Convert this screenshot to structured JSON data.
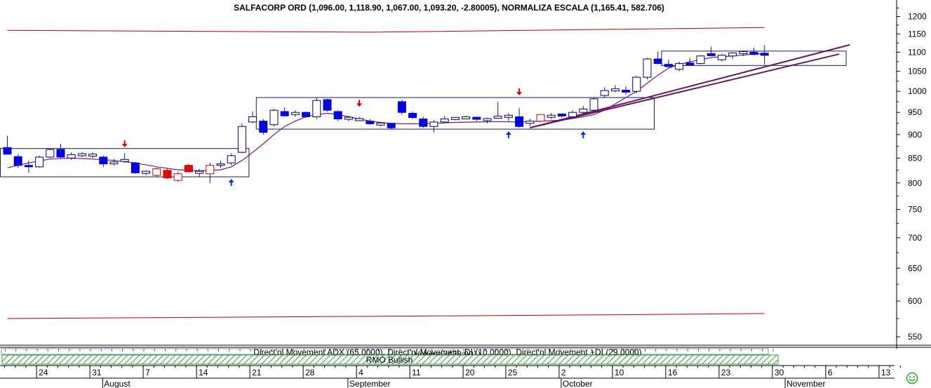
{
  "chart_data": {
    "type": "candlestick",
    "title": "SALFACORP ORD (1,096.00, 1,118.90, 1,067.00, 1,093.20, -2.80005), NORMALIZA ESCALA (1,165.41, 582.706)",
    "ylim": [
      530,
      1230
    ],
    "yscale": "log",
    "yticks": [
      550,
      600,
      650,
      700,
      750,
      800,
      850,
      900,
      950,
      1000,
      1050,
      1100,
      1150,
      1200
    ],
    "xlim": [
      0,
      92
    ],
    "x_day_ticks": [
      {
        "i": 3,
        "label": "24"
      },
      {
        "i": 8,
        "label": "31"
      },
      {
        "i": 13,
        "label": "7"
      },
      {
        "i": 18,
        "label": "14"
      },
      {
        "i": 23,
        "label": "21"
      },
      {
        "i": 28,
        "label": "28"
      },
      {
        "i": 33,
        "label": "4"
      },
      {
        "i": 38,
        "label": "11"
      },
      {
        "i": 43,
        "label": "20"
      },
      {
        "i": 47,
        "label": "25"
      },
      {
        "i": 52,
        "label": "2"
      },
      {
        "i": 57,
        "label": "10"
      },
      {
        "i": 62,
        "label": "16"
      },
      {
        "i": 67,
        "label": "23"
      },
      {
        "i": 72,
        "label": "30"
      },
      {
        "i": 77,
        "label": "6"
      },
      {
        "i": 82,
        "label": "13"
      }
    ],
    "x_month_ticks": [
      {
        "i": 9,
        "label": "August"
      },
      {
        "i": 32,
        "label": "September"
      },
      {
        "i": 52,
        "label": "October"
      },
      {
        "i": 73,
        "label": "November"
      }
    ],
    "candles": [
      {
        "i": 0,
        "o": 872,
        "h": 897,
        "l": 858,
        "c": 858,
        "color": "blue"
      },
      {
        "i": 1,
        "o": 853,
        "h": 858,
        "l": 830,
        "c": 835,
        "color": "blue"
      },
      {
        "i": 2,
        "o": 835,
        "h": 845,
        "l": 820,
        "c": 832,
        "color": "blue"
      },
      {
        "i": 3,
        "o": 832,
        "h": 855,
        "l": 830,
        "c": 852,
        "color": "white"
      },
      {
        "i": 4,
        "o": 852,
        "h": 870,
        "l": 850,
        "c": 868,
        "color": "white"
      },
      {
        "i": 5,
        "o": 868,
        "h": 880,
        "l": 850,
        "c": 852,
        "color": "blue"
      },
      {
        "i": 6,
        "o": 850,
        "h": 862,
        "l": 846,
        "c": 857,
        "color": "white"
      },
      {
        "i": 7,
        "o": 857,
        "h": 862,
        "l": 852,
        "c": 857,
        "color": "white"
      },
      {
        "i": 8,
        "o": 857,
        "h": 862,
        "l": 850,
        "c": 855,
        "color": "white"
      },
      {
        "i": 9,
        "o": 852,
        "h": 855,
        "l": 832,
        "c": 838,
        "color": "blue"
      },
      {
        "i": 10,
        "o": 838,
        "h": 848,
        "l": 835,
        "c": 842,
        "color": "white"
      },
      {
        "i": 11,
        "o": 845,
        "h": 860,
        "l": 840,
        "c": 845,
        "color": "white"
      },
      {
        "i": 12,
        "o": 840,
        "h": 842,
        "l": 818,
        "c": 820,
        "color": "blue"
      },
      {
        "i": 13,
        "o": 822,
        "h": 825,
        "l": 815,
        "c": 820,
        "color": "white"
      },
      {
        "i": 14,
        "o": 815,
        "h": 830,
        "l": 812,
        "c": 828,
        "color": "redhollow"
      },
      {
        "i": 15,
        "o": 825,
        "h": 828,
        "l": 808,
        "c": 810,
        "color": "red"
      },
      {
        "i": 16,
        "o": 805,
        "h": 822,
        "l": 802,
        "c": 818,
        "color": "redhollow"
      },
      {
        "i": 17,
        "o": 835,
        "h": 838,
        "l": 822,
        "c": 822,
        "color": "red"
      },
      {
        "i": 18,
        "o": 822,
        "h": 828,
        "l": 812,
        "c": 820,
        "color": "white"
      },
      {
        "i": 19,
        "o": 818,
        "h": 840,
        "l": 800,
        "c": 835,
        "color": "redhollow"
      },
      {
        "i": 20,
        "o": 835,
        "h": 845,
        "l": 830,
        "c": 838,
        "color": "white"
      },
      {
        "i": 21,
        "o": 840,
        "h": 860,
        "l": 835,
        "c": 855,
        "color": "white"
      },
      {
        "i": 22,
        "o": 862,
        "h": 925,
        "l": 860,
        "c": 918,
        "color": "white"
      },
      {
        "i": 23,
        "o": 928,
        "h": 952,
        "l": 925,
        "c": 940,
        "color": "white"
      },
      {
        "i": 24,
        "o": 930,
        "h": 935,
        "l": 900,
        "c": 905,
        "color": "blue"
      },
      {
        "i": 25,
        "o": 922,
        "h": 958,
        "l": 918,
        "c": 955,
        "color": "white"
      },
      {
        "i": 26,
        "o": 952,
        "h": 962,
        "l": 940,
        "c": 942,
        "color": "blue"
      },
      {
        "i": 27,
        "o": 945,
        "h": 955,
        "l": 940,
        "c": 950,
        "color": "white"
      },
      {
        "i": 28,
        "o": 950,
        "h": 952,
        "l": 938,
        "c": 940,
        "color": "blue"
      },
      {
        "i": 29,
        "o": 940,
        "h": 985,
        "l": 935,
        "c": 978,
        "color": "white"
      },
      {
        "i": 30,
        "o": 980,
        "h": 982,
        "l": 952,
        "c": 955,
        "color": "blue"
      },
      {
        "i": 31,
        "o": 952,
        "h": 955,
        "l": 930,
        "c": 935,
        "color": "blue"
      },
      {
        "i": 32,
        "o": 938,
        "h": 942,
        "l": 930,
        "c": 935,
        "color": "white"
      },
      {
        "i": 33,
        "o": 935,
        "h": 940,
        "l": 932,
        "c": 932,
        "color": "white"
      },
      {
        "i": 34,
        "o": 930,
        "h": 935,
        "l": 922,
        "c": 924,
        "color": "blue"
      },
      {
        "i": 35,
        "o": 922,
        "h": 928,
        "l": 918,
        "c": 925,
        "color": "white"
      },
      {
        "i": 36,
        "o": 925,
        "h": 925,
        "l": 912,
        "c": 915,
        "color": "blue"
      },
      {
        "i": 37,
        "o": 975,
        "h": 980,
        "l": 945,
        "c": 950,
        "color": "blue"
      },
      {
        "i": 38,
        "o": 948,
        "h": 952,
        "l": 935,
        "c": 938,
        "color": "blue"
      },
      {
        "i": 39,
        "o": 935,
        "h": 940,
        "l": 915,
        "c": 918,
        "color": "blue"
      },
      {
        "i": 40,
        "o": 918,
        "h": 932,
        "l": 905,
        "c": 928,
        "color": "white"
      },
      {
        "i": 41,
        "o": 928,
        "h": 942,
        "l": 925,
        "c": 935,
        "color": "white"
      },
      {
        "i": 42,
        "o": 935,
        "h": 940,
        "l": 932,
        "c": 937,
        "color": "white"
      },
      {
        "i": 43,
        "o": 937,
        "h": 942,
        "l": 935,
        "c": 938,
        "color": "white"
      },
      {
        "i": 44,
        "o": 938,
        "h": 940,
        "l": 930,
        "c": 935,
        "color": "blue"
      },
      {
        "i": 45,
        "o": 935,
        "h": 938,
        "l": 925,
        "c": 932,
        "color": "white"
      },
      {
        "i": 46,
        "o": 938,
        "h": 975,
        "l": 935,
        "c": 940,
        "color": "white"
      },
      {
        "i": 47,
        "o": 942,
        "h": 948,
        "l": 930,
        "c": 940,
        "color": "white"
      },
      {
        "i": 48,
        "o": 940,
        "h": 960,
        "l": 915,
        "c": 918,
        "color": "blue"
      },
      {
        "i": 49,
        "o": 925,
        "h": 935,
        "l": 918,
        "c": 930,
        "color": "white"
      },
      {
        "i": 50,
        "o": 930,
        "h": 945,
        "l": 928,
        "c": 945,
        "color": "redhollow"
      },
      {
        "i": 51,
        "o": 940,
        "h": 948,
        "l": 935,
        "c": 942,
        "color": "white"
      },
      {
        "i": 52,
        "o": 944,
        "h": 948,
        "l": 938,
        "c": 944,
        "color": "blue"
      },
      {
        "i": 53,
        "o": 940,
        "h": 955,
        "l": 935,
        "c": 950,
        "color": "white"
      },
      {
        "i": 54,
        "o": 950,
        "h": 965,
        "l": 945,
        "c": 958,
        "color": "white"
      },
      {
        "i": 55,
        "o": 955,
        "h": 985,
        "l": 952,
        "c": 982,
        "color": "white"
      },
      {
        "i": 56,
        "o": 990,
        "h": 1010,
        "l": 985,
        "c": 1002,
        "color": "white"
      },
      {
        "i": 57,
        "o": 1002,
        "h": 1015,
        "l": 998,
        "c": 1005,
        "color": "white"
      },
      {
        "i": 58,
        "o": 1003,
        "h": 1012,
        "l": 992,
        "c": 998,
        "color": "blue"
      },
      {
        "i": 59,
        "o": 1000,
        "h": 1038,
        "l": 995,
        "c": 1035,
        "color": "white"
      },
      {
        "i": 60,
        "o": 1035,
        "h": 1085,
        "l": 1030,
        "c": 1082,
        "color": "white"
      },
      {
        "i": 61,
        "o": 1082,
        "h": 1102,
        "l": 1068,
        "c": 1070,
        "color": "blue"
      },
      {
        "i": 62,
        "o": 1068,
        "h": 1080,
        "l": 1060,
        "c": 1062,
        "color": "blue"
      },
      {
        "i": 63,
        "o": 1055,
        "h": 1075,
        "l": 1050,
        "c": 1070,
        "color": "white"
      },
      {
        "i": 64,
        "o": 1070,
        "h": 1085,
        "l": 1065,
        "c": 1068,
        "color": "blue"
      },
      {
        "i": 65,
        "o": 1070,
        "h": 1092,
        "l": 1068,
        "c": 1090,
        "color": "white"
      },
      {
        "i": 66,
        "o": 1095,
        "h": 1115,
        "l": 1090,
        "c": 1092,
        "color": "blue"
      },
      {
        "i": 67,
        "o": 1080,
        "h": 1095,
        "l": 1075,
        "c": 1092,
        "color": "white"
      },
      {
        "i": 68,
        "o": 1090,
        "h": 1100,
        "l": 1082,
        "c": 1098,
        "color": "white"
      },
      {
        "i": 69,
        "o": 1098,
        "h": 1105,
        "l": 1090,
        "c": 1100,
        "color": "white"
      },
      {
        "i": 70,
        "o": 1100,
        "h": 1112,
        "l": 1092,
        "c": 1094,
        "color": "blue"
      },
      {
        "i": 71,
        "o": 1096,
        "h": 1118.9,
        "l": 1067,
        "c": 1093.2,
        "color": "blue"
      }
    ],
    "moving_average": [
      [
        0,
        830
      ],
      [
        2,
        840
      ],
      [
        4,
        848
      ],
      [
        6,
        850
      ],
      [
        8,
        848
      ],
      [
        10,
        845
      ],
      [
        12,
        840
      ],
      [
        14,
        832
      ],
      [
        16,
        826
      ],
      [
        18,
        824
      ],
      [
        20,
        826
      ],
      [
        21,
        832
      ],
      [
        22,
        845
      ],
      [
        23,
        862
      ],
      [
        24,
        880
      ],
      [
        25,
        900
      ],
      [
        26,
        918
      ],
      [
        27,
        930
      ],
      [
        28,
        940
      ],
      [
        29,
        945
      ],
      [
        30,
        948
      ],
      [
        31,
        945
      ],
      [
        32,
        940
      ],
      [
        33,
        935
      ],
      [
        34,
        930
      ],
      [
        35,
        927
      ],
      [
        36,
        925
      ],
      [
        37,
        924
      ],
      [
        38,
        924
      ],
      [
        40,
        925
      ],
      [
        42,
        927
      ],
      [
        44,
        928
      ],
      [
        46,
        929
      ],
      [
        48,
        928
      ],
      [
        50,
        930
      ],
      [
        52,
        932
      ],
      [
        54,
        940
      ],
      [
        55,
        945
      ],
      [
        56,
        955
      ],
      [
        57,
        970
      ],
      [
        58,
        985
      ],
      [
        59,
        1000
      ],
      [
        60,
        1020
      ],
      [
        61,
        1040
      ],
      [
        62,
        1058
      ],
      [
        63,
        1068
      ],
      [
        64,
        1075
      ],
      [
        65,
        1080
      ],
      [
        66,
        1086
      ],
      [
        68,
        1090
      ],
      [
        70,
        1095
      ],
      [
        71,
        1096
      ]
    ],
    "upper_band": [
      [
        0,
        1160
      ],
      [
        34,
        1155
      ],
      [
        54,
        1162
      ],
      [
        71,
        1168
      ]
    ],
    "lower_band": [
      [
        0,
        575
      ],
      [
        34,
        578
      ],
      [
        54,
        580
      ],
      [
        71,
        582
      ]
    ],
    "trendlines": [
      {
        "from": [
          49,
          915
        ],
        "to": [
          79,
          1120
        ]
      },
      {
        "from": [
          49,
          915
        ],
        "to": [
          78,
          1095
        ]
      }
    ],
    "boxes": [
      {
        "x0": 0,
        "x1": 22,
        "lo": 812,
        "hi": 870
      },
      {
        "x0": 24,
        "x1": 60,
        "lo": 912,
        "hi": 985
      },
      {
        "x0": 62,
        "x1": 78,
        "lo": 1065,
        "hi": 1103
      }
    ],
    "buy_arrows": [
      [
        21,
        812
      ],
      [
        47,
        912
      ],
      [
        54,
        912
      ]
    ],
    "sell_arrows": [
      [
        11,
        868
      ],
      [
        33,
        958
      ],
      [
        48,
        985
      ]
    ],
    "indicator_title": "Direct'nl Movement ADX (65.0000), Direct'nl Movement -DI (10.0000), Direct'nl Movement +DI (29.0000)",
    "volume_label": "Volume (478,901)",
    "rmo_label": "RMO Bullish"
  }
}
